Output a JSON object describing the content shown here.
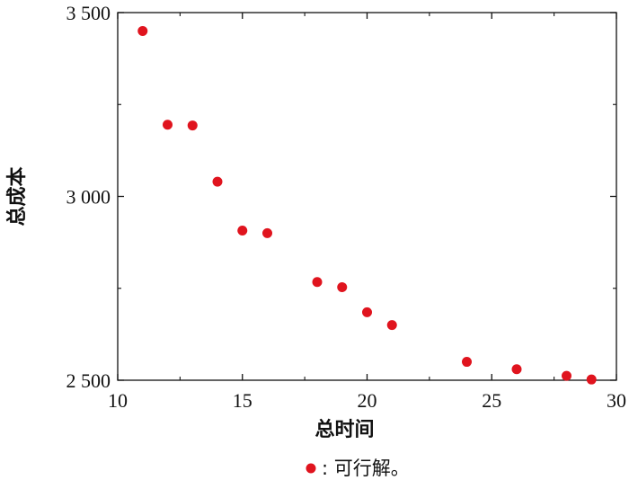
{
  "chart_data": {
    "type": "scatter",
    "title": "",
    "xlabel": "总时间",
    "ylabel": "总成本",
    "xlim": [
      10,
      30
    ],
    "ylim": [
      2500,
      3500
    ],
    "xticks": [
      10,
      15,
      20,
      25,
      30
    ],
    "yticks": [
      2500,
      3000,
      3500
    ],
    "xtick_labels": [
      "10",
      "15",
      "20",
      "25",
      "30"
    ],
    "ytick_labels": [
      "2 500",
      "3 000",
      "3 500"
    ],
    "grid": false,
    "legend": {
      "position": "bottom-center",
      "marker_color": "#e0141e",
      "label": ": 可行解。"
    },
    "series": [
      {
        "name": ": 可行解。",
        "color": "#e0141e",
        "points": [
          {
            "x": 11,
            "y": 3450
          },
          {
            "x": 12,
            "y": 3195
          },
          {
            "x": 13,
            "y": 3193
          },
          {
            "x": 14,
            "y": 3040
          },
          {
            "x": 15,
            "y": 2907
          },
          {
            "x": 16,
            "y": 2900
          },
          {
            "x": 18,
            "y": 2767
          },
          {
            "x": 19,
            "y": 2753
          },
          {
            "x": 20,
            "y": 2685
          },
          {
            "x": 21,
            "y": 2650
          },
          {
            "x": 24,
            "y": 2550
          },
          {
            "x": 26,
            "y": 2530
          },
          {
            "x": 28,
            "y": 2512
          },
          {
            "x": 29,
            "y": 2502
          }
        ]
      }
    ]
  }
}
